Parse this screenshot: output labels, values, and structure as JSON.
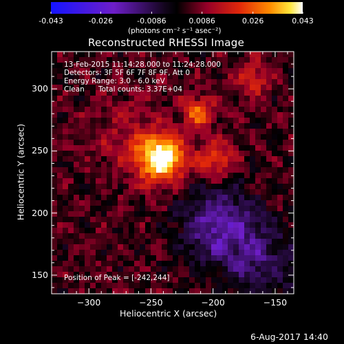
{
  "colorbar": {
    "tick_labels": [
      "-0.043",
      "-0.026",
      "-0.0086",
      "0.0086",
      "0.026",
      "0.043"
    ],
    "tick_values": [
      -0.043,
      -0.026,
      -0.0086,
      0.0086,
      0.026,
      0.043
    ],
    "range": [
      -0.043,
      0.043
    ],
    "unit_label": "(photons cm⁻² s⁻¹ asec⁻²)"
  },
  "chart_data": {
    "type": "heatmap",
    "title": "Reconstructed RHESSI Image",
    "xlabel": "Heliocentric X (arcsec)",
    "ylabel": "Heliocentric Y (arcsec)",
    "xlim": [
      -330,
      -135
    ],
    "ylim": [
      135,
      330
    ],
    "x_ticks": [
      -300,
      -250,
      -200,
      -150
    ],
    "x_tick_labels": [
      "−300",
      "−250",
      "−200",
      "−150"
    ],
    "y_ticks": [
      150,
      200,
      250,
      300
    ],
    "y_tick_labels": [
      "150",
      "200",
      "250",
      "300"
    ],
    "peak": [
      -242,
      244
    ],
    "color_range": [
      -0.043,
      0.043
    ],
    "sources": [
      {
        "x": -242,
        "y": 244,
        "sigma": 13,
        "value": 0.043
      },
      {
        "x": -212,
        "y": 281,
        "sigma": 9,
        "value": 0.022
      },
      {
        "x": -168,
        "y": 308,
        "sigma": 10,
        "value": 0.014
      },
      {
        "x": -198,
        "y": 243,
        "sigma": 11,
        "value": 0.018
      },
      {
        "x": -270,
        "y": 262,
        "sigma": 22,
        "value": 0.008
      },
      {
        "x": -195,
        "y": 190,
        "sigma": 22,
        "value": -0.022
      },
      {
        "x": -160,
        "y": 160,
        "sigma": 20,
        "value": -0.014
      }
    ],
    "annotations": {
      "time_range": "13-Feb-2015 11:14:28.000 to 11:24:28.000",
      "detectors": "Detectors: 3F 5F 6F 7F 8F 9F, Att 0",
      "energy_range": "Energy Range: 3.0 - 6.0 keV",
      "method": "Clean",
      "total_counts": "Total counts: 3.37E+04",
      "peak_position": "Position of Peak = [-242,244]"
    }
  },
  "footer": {
    "timestamp": "6-Aug-2017 14:40"
  }
}
